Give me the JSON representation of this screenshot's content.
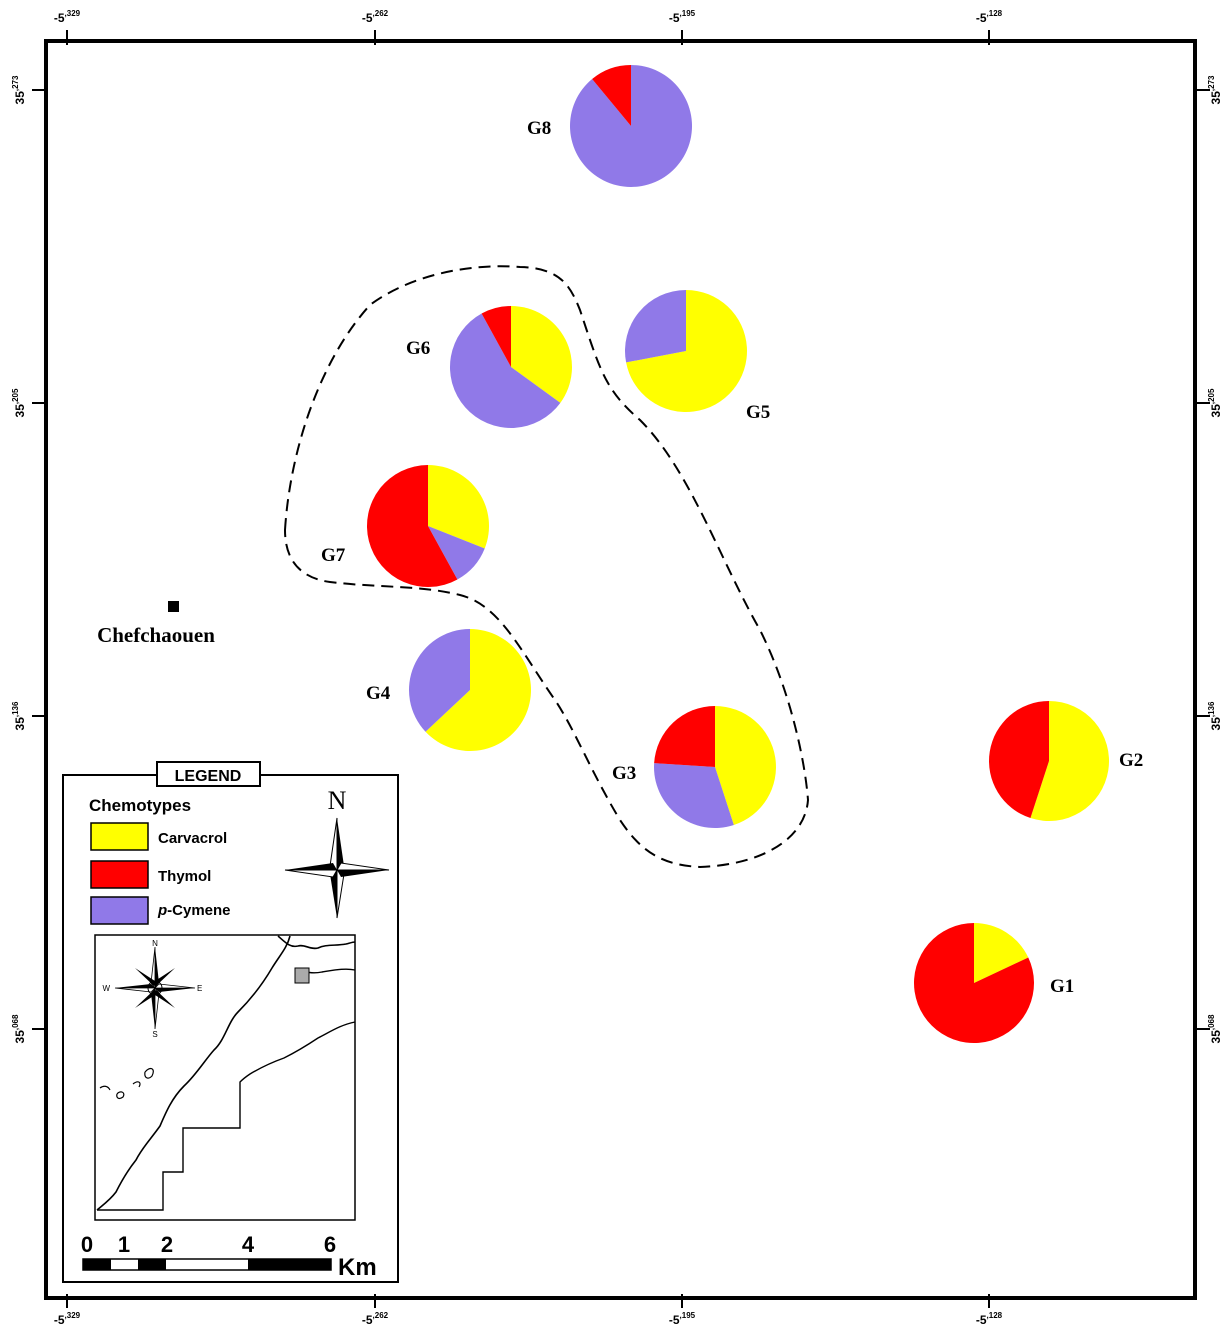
{
  "axes": {
    "top": [
      {
        "base": "-5",
        "sup": ",329"
      },
      {
        "base": "-5",
        "sup": ",262"
      },
      {
        "base": "-5",
        "sup": ",195"
      },
      {
        "base": "-5",
        "sup": ",128"
      }
    ],
    "bottom": [
      {
        "base": "-5",
        "sup": ",329"
      },
      {
        "base": "-5",
        "sup": ",262"
      },
      {
        "base": "-5",
        "sup": ",195"
      },
      {
        "base": "-5",
        "sup": ",128"
      }
    ],
    "left": [
      {
        "base": "35",
        "sup": ",273"
      },
      {
        "base": "35",
        "sup": ",205"
      },
      {
        "base": "35",
        "sup": ",136"
      },
      {
        "base": "35",
        "sup": ",068"
      }
    ],
    "right": [
      {
        "base": "35",
        "sup": ",273"
      },
      {
        "base": "35",
        "sup": ",205"
      },
      {
        "base": "35",
        "sup": ",136"
      },
      {
        "base": "35",
        "sup": ",068"
      }
    ]
  },
  "colors": {
    "carvacrol": "#ffff00",
    "thymol": "#ff0000",
    "p_cymene": "#9079e8"
  },
  "town": {
    "name": "Chefchaouen"
  },
  "pies": [
    {
      "label": "G1",
      "carvacrol": 0.18,
      "thymol": 0.82,
      "p_cymene": 0.0
    },
    {
      "label": "G2",
      "carvacrol": 0.55,
      "thymol": 0.45,
      "p_cymene": 0.0
    },
    {
      "label": "G3",
      "carvacrol": 0.45,
      "thymol": 0.24,
      "p_cymene": 0.31
    },
    {
      "label": "G4",
      "carvacrol": 0.63,
      "thymol": 0.0,
      "p_cymene": 0.37
    },
    {
      "label": "G5",
      "carvacrol": 0.72,
      "thymol": 0.0,
      "p_cymene": 0.28
    },
    {
      "label": "G6",
      "carvacrol": 0.35,
      "thymol": 0.08,
      "p_cymene": 0.57
    },
    {
      "label": "G7",
      "carvacrol": 0.31,
      "thymol": 0.58,
      "p_cymene": 0.11
    },
    {
      "label": "G8",
      "carvacrol": 0.0,
      "thymol": 0.11,
      "p_cymene": 0.89
    }
  ],
  "legend": {
    "title": "LEGEND",
    "subtitle": "Chemotypes",
    "items": [
      {
        "italic": "",
        "label": "Carvacrol"
      },
      {
        "italic": "",
        "label": "Thymol"
      },
      {
        "italic": "p",
        "label": "-Cymene"
      }
    ]
  },
  "compass_north": "N",
  "inset": {
    "n": "N",
    "s": "S",
    "e": "E",
    "w": "W"
  },
  "scale": {
    "ticks": [
      "0",
      "1",
      "2",
      "4",
      "6"
    ],
    "unit": "Km"
  }
}
